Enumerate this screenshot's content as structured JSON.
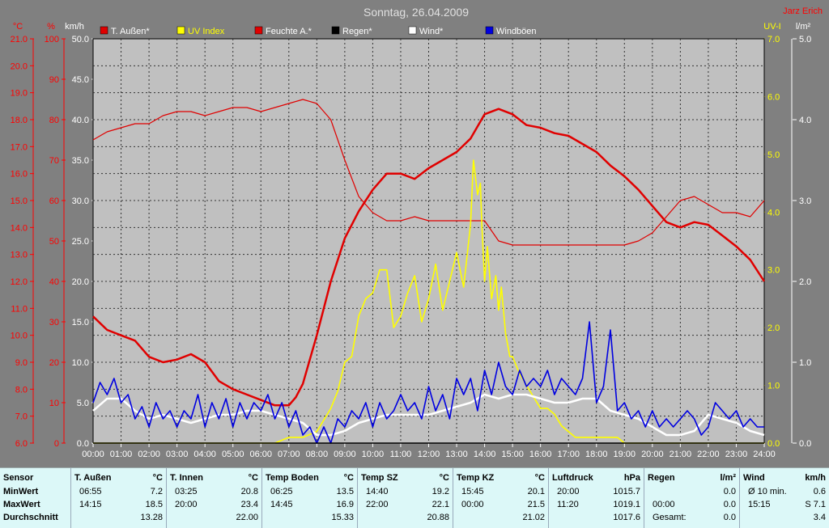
{
  "chart_data": {
    "type": "line",
    "title": "Sonntag, 26.04.2009",
    "author": "Jarz Erich",
    "x_ticks": [
      "00:00",
      "01:00",
      "02:00",
      "03:00",
      "04:00",
      "05:00",
      "06:00",
      "07:00",
      "08:00",
      "09:00",
      "10:00",
      "11:00",
      "12:00",
      "13:00",
      "14:00",
      "15:00",
      "16:00",
      "17:00",
      "18:00",
      "19:00",
      "20:00",
      "21:00",
      "22:00",
      "23:00",
      "24:00"
    ],
    "axes": {
      "temp": {
        "unit": "°C",
        "min": 6,
        "max": 21,
        "ticks": [
          "6.0",
          "7.0",
          "8.0",
          "9.0",
          "10.0",
          "11.0",
          "12.0",
          "13.0",
          "14.0",
          "15.0",
          "16.0",
          "17.0",
          "18.0",
          "19.0",
          "20.0",
          "21.0"
        ]
      },
      "hum": {
        "unit": "%",
        "min": 0,
        "max": 100,
        "ticks": [
          "0",
          "10",
          "20",
          "30",
          "40",
          "50",
          "60",
          "70",
          "80",
          "90",
          "100"
        ]
      },
      "wind": {
        "unit": "km/h",
        "min": 0,
        "max": 50,
        "ticks": [
          "0.0",
          "5.0",
          "10.0",
          "15.0",
          "20.0",
          "25.0",
          "30.0",
          "35.0",
          "40.0",
          "45.0",
          "50.0"
        ]
      },
      "uv": {
        "unit": "UV-I",
        "min": 0,
        "max": 7,
        "ticks": [
          "0.0",
          "1.0",
          "2.0",
          "3.0",
          "4.0",
          "5.0",
          "6.0",
          "7.0"
        ]
      },
      "rain": {
        "unit": "l/m²",
        "min": 0,
        "max": 5,
        "ticks": [
          "0.0",
          "1.0",
          "2.0",
          "3.0",
          "4.0",
          "5.0"
        ]
      }
    },
    "legend": [
      {
        "label": "T. Außen*",
        "color": "#e00000"
      },
      {
        "label": "UV Index",
        "color": "#ffff00"
      },
      {
        "label": "Feuchte A.*",
        "color": "#e00000"
      },
      {
        "label": "Regen*",
        "color": "#000000"
      },
      {
        "label": "Wind*",
        "color": "#ffffff"
      },
      {
        "label": "Windböen",
        "color": "#0000e0"
      }
    ],
    "series": [
      {
        "name": "T. Außen*",
        "axis": "temp",
        "color": "#e00000",
        "x": [
          0,
          0.5,
          1,
          1.5,
          2,
          2.5,
          3,
          3.5,
          4,
          4.5,
          5,
          5.5,
          6,
          6.5,
          7,
          7.25,
          7.5,
          8,
          8.5,
          9,
          9.5,
          10,
          10.5,
          11,
          11.5,
          12,
          12.5,
          13,
          13.5,
          14,
          14.5,
          15,
          15.5,
          16,
          16.5,
          17,
          17.5,
          18,
          18.5,
          19,
          19.5,
          20,
          20.5,
          21,
          21.5,
          22,
          22.5,
          23,
          23.5,
          24
        ],
        "y": [
          10.7,
          10.2,
          10.0,
          9.8,
          9.2,
          9.0,
          9.1,
          9.3,
          9.0,
          8.3,
          8.0,
          7.8,
          7.6,
          7.4,
          7.4,
          7.7,
          8.2,
          10.0,
          12.0,
          13.6,
          14.6,
          15.4,
          16.0,
          16.0,
          15.8,
          16.2,
          16.5,
          16.8,
          17.3,
          18.2,
          18.4,
          18.2,
          17.8,
          17.7,
          17.5,
          17.4,
          17.1,
          16.8,
          16.3,
          15.9,
          15.4,
          14.8,
          14.2,
          14.0,
          14.2,
          14.1,
          13.7,
          13.3,
          12.8,
          12.0
        ]
      },
      {
        "name": "Feuchte A.*",
        "axis": "hum",
        "color": "#e00000",
        "x": [
          0,
          0.5,
          1,
          1.5,
          2,
          2.5,
          3,
          3.5,
          4,
          4.5,
          5,
          5.5,
          6,
          6.5,
          7,
          7.5,
          8,
          8.5,
          9,
          9.5,
          10,
          10.5,
          11,
          11.5,
          12,
          12.5,
          13,
          13.5,
          14,
          14.5,
          15,
          15.5,
          16,
          16.5,
          17,
          17.5,
          18,
          18.5,
          19,
          19.5,
          20,
          20.5,
          21,
          21.5,
          22,
          22.5,
          23,
          23.5,
          24
        ],
        "y": [
          75,
          77,
          78,
          79,
          79,
          81,
          82,
          82,
          81,
          82,
          83,
          83,
          82,
          83,
          84,
          85,
          84,
          80,
          70,
          61,
          57,
          55,
          55,
          56,
          55,
          55,
          55,
          55,
          55,
          50,
          49,
          49,
          49,
          49,
          49,
          49,
          49,
          49,
          49,
          50,
          52,
          56,
          60,
          61,
          59,
          57,
          57,
          56,
          60
        ]
      },
      {
        "name": "UV Index",
        "axis": "uv",
        "color": "#ffff00",
        "x": [
          0,
          6.5,
          7,
          7.5,
          8,
          8.25,
          8.5,
          8.75,
          9,
          9.25,
          9.5,
          9.75,
          10,
          10.25,
          10.5,
          10.75,
          11,
          11.25,
          11.5,
          11.75,
          12,
          12.25,
          12.5,
          12.75,
          13,
          13.25,
          13.5,
          13.6,
          13.75,
          13.85,
          13.9,
          14,
          14.1,
          14.25,
          14.4,
          14.5,
          14.6,
          14.75,
          14.9,
          15,
          15.25,
          15.5,
          15.75,
          16,
          16.25,
          16.5,
          16.75,
          17,
          17.25,
          17.5,
          17.75,
          18,
          18.25,
          18.5,
          18.75,
          19,
          24
        ],
        "y": [
          0,
          0,
          0.1,
          0.1,
          0.2,
          0.4,
          0.6,
          0.9,
          1.4,
          1.5,
          2.2,
          2.5,
          2.6,
          3.0,
          3.0,
          2.0,
          2.2,
          2.6,
          2.9,
          2.1,
          2.5,
          3.1,
          2.3,
          2.8,
          3.3,
          2.7,
          3.8,
          4.9,
          4.3,
          4.5,
          3.8,
          2.8,
          3.4,
          2.5,
          2.9,
          2.3,
          2.7,
          1.9,
          1.5,
          1.5,
          1.2,
          1.0,
          0.8,
          0.6,
          0.6,
          0.5,
          0.3,
          0.2,
          0.1,
          0.1,
          0.1,
          0.1,
          0.1,
          0.1,
          0.1,
          0,
          0
        ]
      },
      {
        "name": "Wind*",
        "axis": "wind",
        "color": "#ffffff",
        "x": [
          0,
          0.5,
          1,
          1.5,
          2,
          2.5,
          3,
          3.5,
          4,
          4.5,
          5,
          5.5,
          6,
          6.5,
          7,
          7.5,
          8,
          8.5,
          9,
          9.5,
          10,
          10.5,
          11,
          11.5,
          12,
          12.5,
          13,
          13.5,
          14,
          14.5,
          15,
          15.5,
          16,
          16.5,
          17,
          17.5,
          18,
          18.5,
          19,
          19.5,
          20,
          20.5,
          21,
          21.5,
          22,
          22.5,
          23,
          23.5,
          24
        ],
        "y": [
          4,
          5.5,
          5.5,
          4,
          3,
          3.5,
          3,
          2.5,
          3,
          3.5,
          3.5,
          4,
          4,
          3.5,
          3,
          2.5,
          1,
          1,
          1.5,
          2.5,
          3,
          3.5,
          3.5,
          3.5,
          3.5,
          4,
          4.5,
          5,
          6,
          5.5,
          6,
          6,
          5.5,
          5,
          5,
          5.5,
          5.5,
          4,
          3.5,
          3,
          2,
          1,
          1,
          1.5,
          3.5,
          3,
          2.5,
          1.5,
          1
        ]
      },
      {
        "name": "Windböen",
        "axis": "wind",
        "color": "#0000e0",
        "x": [
          0,
          0.25,
          0.5,
          0.75,
          1,
          1.25,
          1.5,
          1.75,
          2,
          2.25,
          2.5,
          2.75,
          3,
          3.25,
          3.5,
          3.75,
          4,
          4.25,
          4.5,
          4.75,
          5,
          5.25,
          5.5,
          5.75,
          6,
          6.25,
          6.5,
          6.75,
          7,
          7.25,
          7.5,
          7.75,
          8,
          8.25,
          8.5,
          8.75,
          9,
          9.25,
          9.5,
          9.75,
          10,
          10.25,
          10.5,
          10.75,
          11,
          11.25,
          11.5,
          11.75,
          12,
          12.25,
          12.5,
          12.75,
          13,
          13.25,
          13.5,
          13.75,
          14,
          14.25,
          14.5,
          14.75,
          15,
          15.25,
          15.5,
          15.75,
          16,
          16.25,
          16.5,
          16.75,
          17,
          17.25,
          17.5,
          17.75,
          18,
          18.25,
          18.5,
          18.75,
          19,
          19.25,
          19.5,
          19.75,
          20,
          20.25,
          20.5,
          20.75,
          21,
          21.25,
          21.5,
          21.75,
          22,
          22.25,
          22.5,
          22.75,
          23,
          23.25,
          23.5,
          23.75,
          24
        ],
        "y": [
          5,
          7.5,
          6,
          8,
          5,
          6,
          3,
          4.5,
          2,
          5,
          3,
          4,
          2,
          4,
          3,
          6,
          2,
          5,
          3,
          5.5,
          2,
          5,
          3,
          5,
          4,
          6,
          3,
          5,
          2,
          4,
          1,
          2,
          0,
          2,
          0,
          3,
          2,
          4,
          3,
          5,
          2,
          5,
          3,
          4,
          6,
          4,
          5,
          3,
          7,
          4,
          6,
          3,
          8,
          6,
          8,
          4,
          9,
          6,
          10,
          7,
          6,
          9,
          7,
          8,
          7,
          9,
          6,
          8,
          7,
          6,
          8,
          15,
          5,
          7,
          14,
          4,
          5,
          3,
          4,
          2,
          4,
          2,
          3,
          2,
          3,
          4,
          3,
          1,
          2,
          5,
          4,
          3,
          4,
          2,
          3,
          2,
          2
        ]
      },
      {
        "name": "Regen*",
        "axis": "rain",
        "color": "#000000",
        "x": [
          0,
          24
        ],
        "y": [
          0,
          0
        ]
      }
    ]
  },
  "stats": {
    "columns": [
      {
        "header": "Sensor",
        "unit": "",
        "rows": [
          [
            "",
            "MinWert",
            ""
          ],
          [
            "",
            "MaxWert",
            ""
          ],
          [
            "",
            "Durchschnitt",
            ""
          ]
        ]
      },
      {
        "header": "T. Außen",
        "unit": "°C",
        "rows": [
          [
            "06:55",
            "",
            "7.2"
          ],
          [
            "14:15",
            "",
            "18.5"
          ],
          [
            "",
            "",
            "13.28"
          ]
        ]
      },
      {
        "header": "T. Innen",
        "unit": "°C",
        "rows": [
          [
            "03:25",
            "",
            "20.8"
          ],
          [
            "20:00",
            "",
            "23.4"
          ],
          [
            "",
            "",
            "22.00"
          ]
        ]
      },
      {
        "header": "Temp Boden",
        "unit": "°C",
        "rows": [
          [
            "06:25",
            "",
            "13.5"
          ],
          [
            "14:45",
            "",
            "16.9"
          ],
          [
            "",
            "",
            "15.33"
          ]
        ]
      },
      {
        "header": "Temp SZ",
        "unit": "°C",
        "rows": [
          [
            "14:40",
            "",
            "19.2"
          ],
          [
            "22:00",
            "",
            "22.1"
          ],
          [
            "",
            "",
            "20.88"
          ]
        ]
      },
      {
        "header": "Temp KZ",
        "unit": "°C",
        "rows": [
          [
            "15:45",
            "",
            "20.1"
          ],
          [
            "00:00",
            "",
            "21.5"
          ],
          [
            "",
            "",
            "21.02"
          ]
        ]
      },
      {
        "header": "Luftdruck",
        "unit": "hPa",
        "rows": [
          [
            "20:00",
            "",
            "1015.7"
          ],
          [
            "11:20",
            "",
            "1019.1"
          ],
          [
            "",
            "",
            "1017.6"
          ]
        ]
      },
      {
        "header": "Regen",
        "unit": "l/m²",
        "rows": [
          [
            "",
            "",
            "0.0"
          ],
          [
            "00:00",
            "",
            "0.0"
          ],
          [
            "Gesamt:",
            "",
            "0.0"
          ]
        ]
      },
      {
        "header": "Wind",
        "unit": "km/h",
        "rows": [
          [
            "Ø 10 min.",
            "",
            "0.6"
          ],
          [
            "15:15",
            "",
            "S 7.1"
          ],
          [
            "",
            "",
            "3.4"
          ]
        ]
      }
    ]
  }
}
